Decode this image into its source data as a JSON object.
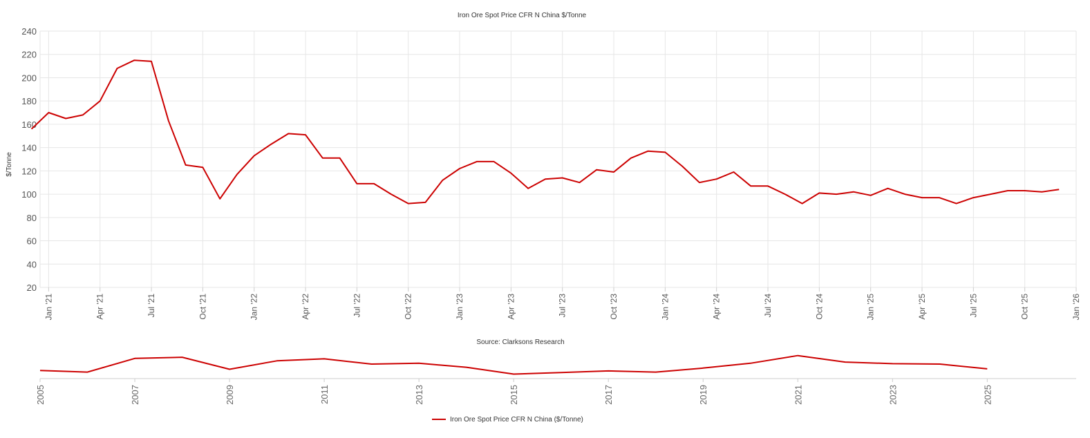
{
  "chart_data": {
    "type": "line",
    "title": "Iron Ore Spot Price CFR N China $/Tonne",
    "ylabel": "$/Tonne",
    "xlabel": "",
    "source": "Source: Clarksons Research",
    "ylim": [
      20,
      240
    ],
    "yticks": [
      20,
      40,
      60,
      80,
      100,
      120,
      140,
      160,
      180,
      200,
      220,
      240
    ],
    "xlim": [
      "2020-12",
      "2026-01"
    ],
    "xticks": [
      {
        "date": "2021-01",
        "label": "Jan '21"
      },
      {
        "date": "2021-04",
        "label": "Apr '21"
      },
      {
        "date": "2021-07",
        "label": "Jul '21"
      },
      {
        "date": "2021-10",
        "label": "Oct '21"
      },
      {
        "date": "2022-01",
        "label": "Jan '22"
      },
      {
        "date": "2022-04",
        "label": "Apr '22"
      },
      {
        "date": "2022-07",
        "label": "Jul '22"
      },
      {
        "date": "2022-10",
        "label": "Oct '22"
      },
      {
        "date": "2023-01",
        "label": "Jan '23"
      },
      {
        "date": "2023-04",
        "label": "Apr '23"
      },
      {
        "date": "2023-07",
        "label": "Jul '23"
      },
      {
        "date": "2023-10",
        "label": "Oct '23"
      },
      {
        "date": "2024-01",
        "label": "Jan '24"
      },
      {
        "date": "2024-04",
        "label": "Apr '24"
      },
      {
        "date": "2024-07",
        "label": "Jul '24"
      },
      {
        "date": "2024-10",
        "label": "Oct '24"
      },
      {
        "date": "2025-01",
        "label": "Jan '25"
      },
      {
        "date": "2025-04",
        "label": "Apr '25"
      },
      {
        "date": "2025-07",
        "label": "Jul '25"
      },
      {
        "date": "2025-10",
        "label": "Oct '25"
      },
      {
        "date": "2026-01",
        "label": "Jan '26"
      }
    ],
    "grid": true,
    "legend_position": "bottom-center",
    "series": [
      {
        "name": "Iron Ore Spot Price CFR N China ($/Tonne)",
        "color": "#cc0000",
        "dates": [
          "2020-12",
          "2021-01",
          "2021-02",
          "2021-03",
          "2021-04",
          "2021-05",
          "2021-06",
          "2021-07",
          "2021-08",
          "2021-09",
          "2021-10",
          "2021-11",
          "2021-12",
          "2022-01",
          "2022-02",
          "2022-03",
          "2022-04",
          "2022-05",
          "2022-06",
          "2022-07",
          "2022-08",
          "2022-09",
          "2022-10",
          "2022-11",
          "2022-12",
          "2023-01",
          "2023-02",
          "2023-03",
          "2023-04",
          "2023-05",
          "2023-06",
          "2023-07",
          "2023-08",
          "2023-09",
          "2023-10",
          "2023-11",
          "2023-12",
          "2024-01",
          "2024-02",
          "2024-03",
          "2024-04",
          "2024-05",
          "2024-06",
          "2024-07",
          "2024-08",
          "2024-09",
          "2024-10",
          "2024-11",
          "2024-12",
          "2025-01",
          "2025-02",
          "2025-03",
          "2025-04",
          "2025-05",
          "2025-06",
          "2025-07",
          "2025-08",
          "2025-09",
          "2025-10",
          "2025-11",
          "2025-12"
        ],
        "values": [
          156,
          170,
          165,
          168,
          180,
          208,
          215,
          214,
          163,
          125,
          123,
          96,
          117,
          133,
          143,
          152,
          151,
          131,
          131,
          109,
          109,
          100,
          92,
          93,
          112,
          122,
          128,
          128,
          118,
          105,
          113,
          114,
          110,
          121,
          119,
          131,
          137,
          136,
          124,
          110,
          113,
          119,
          107,
          107,
          100,
          92,
          101,
          100,
          102,
          99,
          105,
          100,
          97,
          97,
          92,
          97,
          100,
          103,
          103,
          102,
          104
        ]
      }
    ]
  },
  "navigator": {
    "ticks": [
      "2005",
      "2007",
      "2009",
      "2011",
      "2013",
      "2015",
      "2017",
      "2019",
      "2021",
      "2023",
      "2025"
    ],
    "range": [
      2005,
      2025.9
    ],
    "points": [
      [
        2005,
        90
      ],
      [
        2006,
        86
      ],
      [
        2007,
        120
      ],
      [
        2008,
        123
      ],
      [
        2009,
        93
      ],
      [
        2010,
        114
      ],
      [
        2011,
        119
      ],
      [
        2012,
        106
      ],
      [
        2013,
        108
      ],
      [
        2014,
        98
      ],
      [
        2015,
        81
      ],
      [
        2016,
        85
      ],
      [
        2017,
        89
      ],
      [
        2018,
        86
      ],
      [
        2019,
        96
      ],
      [
        2020,
        108
      ],
      [
        2021,
        127
      ],
      [
        2022,
        111
      ],
      [
        2023,
        107
      ],
      [
        2024,
        106
      ],
      [
        2025,
        94
      ]
    ]
  },
  "legend": {
    "label": "Iron Ore Spot Price CFR N China ($/Tonne)"
  }
}
